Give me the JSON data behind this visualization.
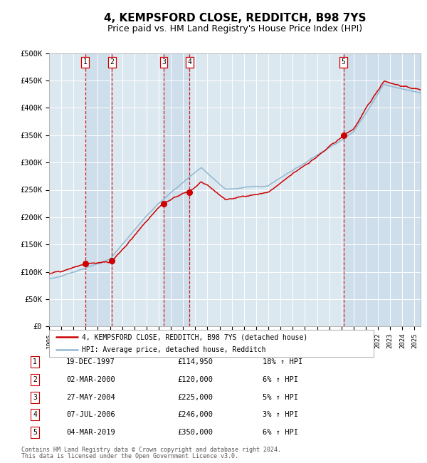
{
  "title": "4, KEMPSFORD CLOSE, REDDITCH, B98 7YS",
  "subtitle": "Price paid vs. HM Land Registry's House Price Index (HPI)",
  "title_fontsize": 11,
  "subtitle_fontsize": 9,
  "ylim": [
    0,
    500000
  ],
  "yticks": [
    0,
    50000,
    100000,
    150000,
    200000,
    250000,
    300000,
    350000,
    400000,
    450000,
    500000
  ],
  "ytick_labels": [
    "£0",
    "£50K",
    "£100K",
    "£150K",
    "£200K",
    "£250K",
    "£300K",
    "£350K",
    "£400K",
    "£450K",
    "£500K"
  ],
  "background_color": "#dce8f0",
  "fig_background": "#ffffff",
  "grid_color": "#ffffff",
  "hpi_line_color": "#90b8d0",
  "price_line_color": "#cc0000",
  "marker_color": "#cc0000",
  "vline_color": "#cc0000",
  "vband_color": "#c5d8e8",
  "legend_line1": "4, KEMPSFORD CLOSE, REDDITCH, B98 7YS (detached house)",
  "legend_line2": "HPI: Average price, detached house, Redditch",
  "sales": [
    {
      "num": 1,
      "date_str": "19-DEC-1997",
      "year": 1997.96,
      "price": 114950,
      "pct": "18%",
      "dir": "↑"
    },
    {
      "num": 2,
      "date_str": "02-MAR-2000",
      "year": 2000.17,
      "price": 120000,
      "pct": "6%",
      "dir": "↑"
    },
    {
      "num": 3,
      "date_str": "27-MAY-2004",
      "year": 2004.4,
      "price": 225000,
      "pct": "5%",
      "dir": "↑"
    },
    {
      "num": 4,
      "date_str": "07-JUL-2006",
      "year": 2006.52,
      "price": 246000,
      "pct": "3%",
      "dir": "↑"
    },
    {
      "num": 5,
      "date_str": "04-MAR-2019",
      "year": 2019.17,
      "price": 350000,
      "pct": "6%",
      "dir": "↑"
    }
  ],
  "footer1": "Contains HM Land Registry data © Crown copyright and database right 2024.",
  "footer2": "This data is licensed under the Open Government Licence v3.0.",
  "xlim_start": 1995,
  "xlim_end": 2025.5
}
